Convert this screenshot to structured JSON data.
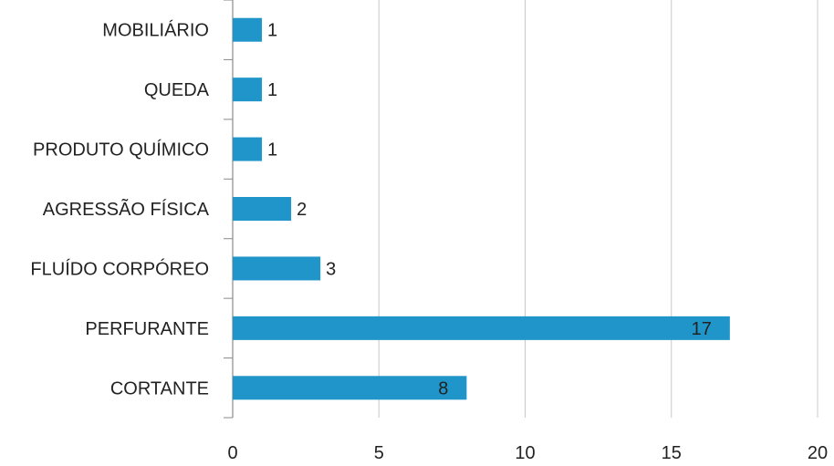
{
  "chart_data": {
    "type": "bar",
    "orientation": "horizontal",
    "categories": [
      "CORTANTE",
      "PERFURANTE",
      "FLUÍDO CORPÓREO",
      "AGRESSÃO FÍSICA",
      "PRODUTO QUÍMICO",
      "QUEDA",
      "MOBILIÁRIO"
    ],
    "values": [
      8,
      17,
      3,
      2,
      1,
      1,
      1
    ],
    "data_labels": [
      "8",
      "17",
      "3",
      "2",
      "1",
      "1",
      "1"
    ],
    "xlim": [
      0,
      20
    ],
    "xticks": [
      0,
      5,
      10,
      15,
      20
    ],
    "xtick_labels": [
      "0",
      "5",
      "10",
      "15",
      "20"
    ],
    "grid": "vertical",
    "legend": "none",
    "title": "",
    "xlabel": "",
    "ylabel": "",
    "colors": {
      "bar": "#1f95c9",
      "grid": "#c8c8c8",
      "axis": "#8a8a8a"
    }
  }
}
